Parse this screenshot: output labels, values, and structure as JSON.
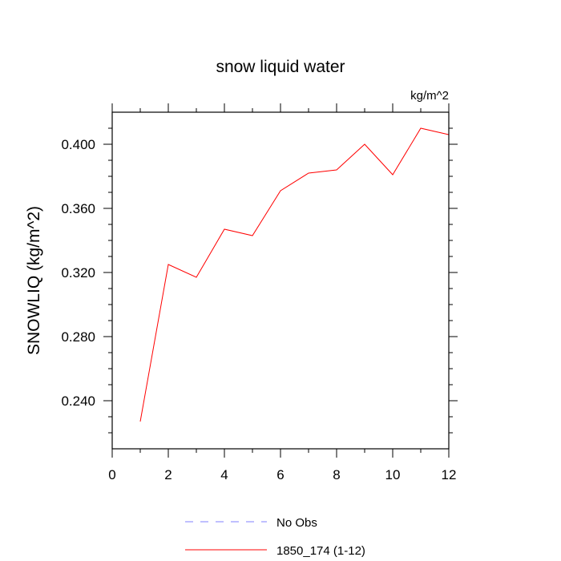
{
  "chart_data": {
    "type": "line",
    "title": "snow liquid water",
    "units_label": "kg/m^2",
    "xlabel": "",
    "ylabel": "SNOWLIQ  (kg/m^2)",
    "xlim": [
      0,
      12
    ],
    "ylim": [
      0.21,
      0.42
    ],
    "x_ticks": [
      0,
      2,
      4,
      6,
      8,
      10,
      12
    ],
    "x_tick_labels": [
      "0",
      "2",
      "4",
      "6",
      "8",
      "10",
      "12"
    ],
    "y_ticks": [
      0.24,
      0.28,
      0.32,
      0.36,
      0.4
    ],
    "y_tick_labels": [
      "0.240",
      "0.280",
      "0.320",
      "0.360",
      "0.400"
    ],
    "grid": false,
    "legend_position": "bottom-center",
    "series": [
      {
        "name": "No Obs",
        "color": "#8080ff",
        "dash": "dashed",
        "x": [],
        "values": []
      },
      {
        "name": "1850_174 (1-12)",
        "color": "#ff0000",
        "dash": "solid",
        "x": [
          1,
          2,
          3,
          4,
          5,
          6,
          7,
          8,
          9,
          10,
          11,
          12
        ],
        "values": [
          0.227,
          0.325,
          0.317,
          0.347,
          0.343,
          0.371,
          0.382,
          0.384,
          0.4,
          0.381,
          0.41,
          0.406
        ]
      }
    ]
  }
}
